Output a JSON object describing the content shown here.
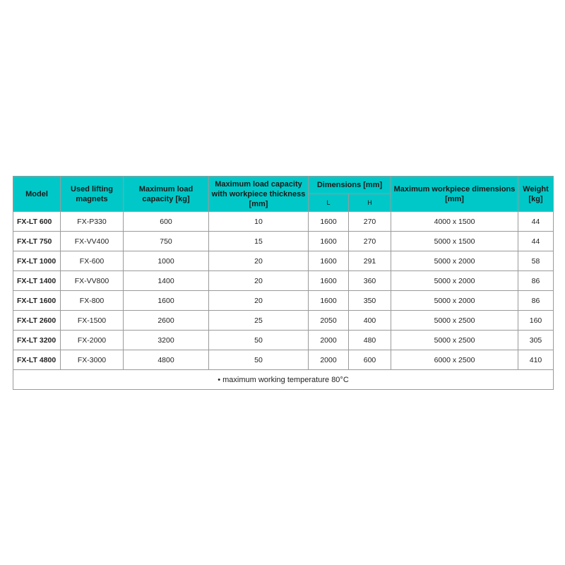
{
  "header": {
    "model": "Model",
    "magnets": "Used lifting magnets",
    "max_load": "Maximum load capacity [kg]",
    "max_load_thick": "Maximum load capacity with workpiece thickness [mm]",
    "dimensions": "Dimensions [mm]",
    "dim_l": "L",
    "dim_h": "H",
    "max_workpiece": "Maximum workpiece dimensions [mm]",
    "weight": "Weight [kg]"
  },
  "rows": [
    [
      "FX-LT 600",
      "FX-P330",
      "600",
      "10",
      "1600",
      "270",
      "4000 x 1500",
      "44"
    ],
    [
      "FX-LT 750",
      "FX-VV400",
      "750",
      "15",
      "1600",
      "270",
      "5000 x 1500",
      "44"
    ],
    [
      "FX-LT 1000",
      "FX-600",
      "1000",
      "20",
      "1600",
      "291",
      "5000 x 2000",
      "58"
    ],
    [
      "FX-LT 1400",
      "FX-VV800",
      "1400",
      "20",
      "1600",
      "360",
      "5000 x 2000",
      "86"
    ],
    [
      "FX-LT 1600",
      "FX-800",
      "1600",
      "20",
      "1600",
      "350",
      "5000 x 2000",
      "86"
    ],
    [
      "FX-LT 2600",
      "FX-1500",
      "2600",
      "25",
      "2050",
      "400",
      "5000 x 2500",
      "160"
    ],
    [
      "FX-LT 3200",
      "FX-2000",
      "3200",
      "50",
      "2000",
      "480",
      "5000 x 2500",
      "305"
    ],
    [
      "FX-LT 4800",
      "FX-3000",
      "4800",
      "50",
      "2000",
      "600",
      "6000 x 2500",
      "410"
    ]
  ],
  "footer": "• maximum working temperature 80°C",
  "colors": {
    "header_bg": "#00c8c8"
  }
}
